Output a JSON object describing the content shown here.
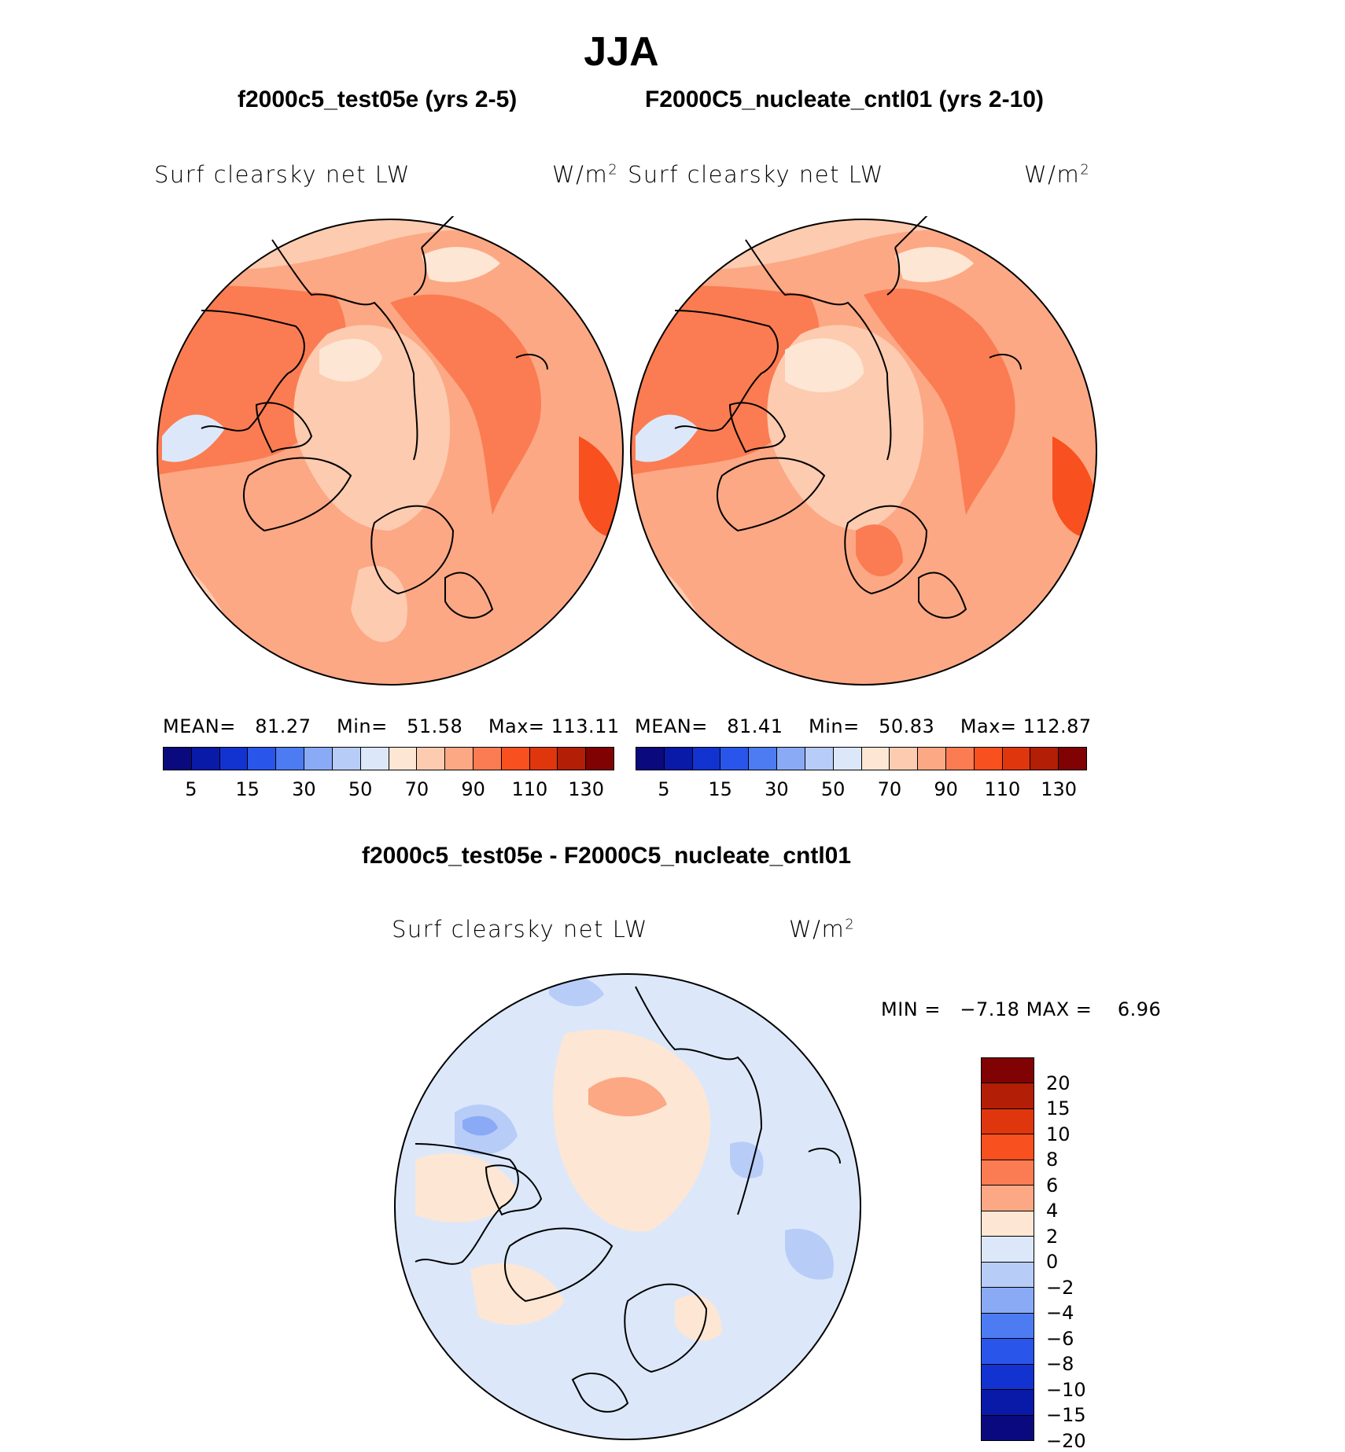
{
  "title": "JJA",
  "panels": [
    {
      "case_title": "f2000c5_test05e (yrs 2-5)",
      "variable": "Surf clearsky net LW",
      "units": "W/m",
      "stats": {
        "mean_label": "MEAN=",
        "mean": "81.27",
        "min_label": "Min=",
        "min": "51.58",
        "max_label": "Max=",
        "max": "113.11"
      }
    },
    {
      "case_title": "F2000C5_nucleate_cntl01 (yrs 2-10)",
      "variable": "Surf clearsky net LW",
      "units": "W/m",
      "stats": {
        "mean_label": "MEAN=",
        "mean": "81.41",
        "min_label": "Min=",
        "min": "50.83",
        "max_label": "Max=",
        "max": "112.87"
      }
    }
  ],
  "diff_panel": {
    "case_title": "f2000c5_test05e - F2000C5_nucleate_cntl01",
    "variable": "Surf clearsky net LW",
    "units": "W/m",
    "stats": {
      "min_label": "MIN =",
      "min": "−7.18",
      "max_label": "MAX =",
      "max": "6.96"
    }
  },
  "units_superscript": "2",
  "colorbar_top": {
    "colors": [
      "#0a0a7e",
      "#0a1aa8",
      "#1233d0",
      "#2a55ea",
      "#4d7bf2",
      "#8aaaf6",
      "#b8ccf8",
      "#dce8fa",
      "#fde6d4",
      "#fdcbb0",
      "#fca884",
      "#fb7c52",
      "#f8501e",
      "#e0360e",
      "#b31e06",
      "#800202"
    ],
    "tick_labels": [
      "5",
      "15",
      "30",
      "50",
      "70",
      "90",
      "110",
      "130"
    ]
  },
  "colorbar_diff": {
    "colors": [
      "#800202",
      "#b31e06",
      "#e0360e",
      "#f8501e",
      "#fb7c52",
      "#fca884",
      "#fde6d4",
      "#dce8fa",
      "#b8ccf8",
      "#8aaaf6",
      "#4d7bf2",
      "#2a55ea",
      "#1233d0",
      "#0a1aa8",
      "#0a0a7e"
    ],
    "tick_labels": [
      "20",
      "15",
      "10",
      "8",
      "6",
      "4",
      "2",
      "0",
      "−2",
      "−4",
      "−6",
      "−8",
      "−10",
      "−15",
      "−20"
    ]
  }
}
